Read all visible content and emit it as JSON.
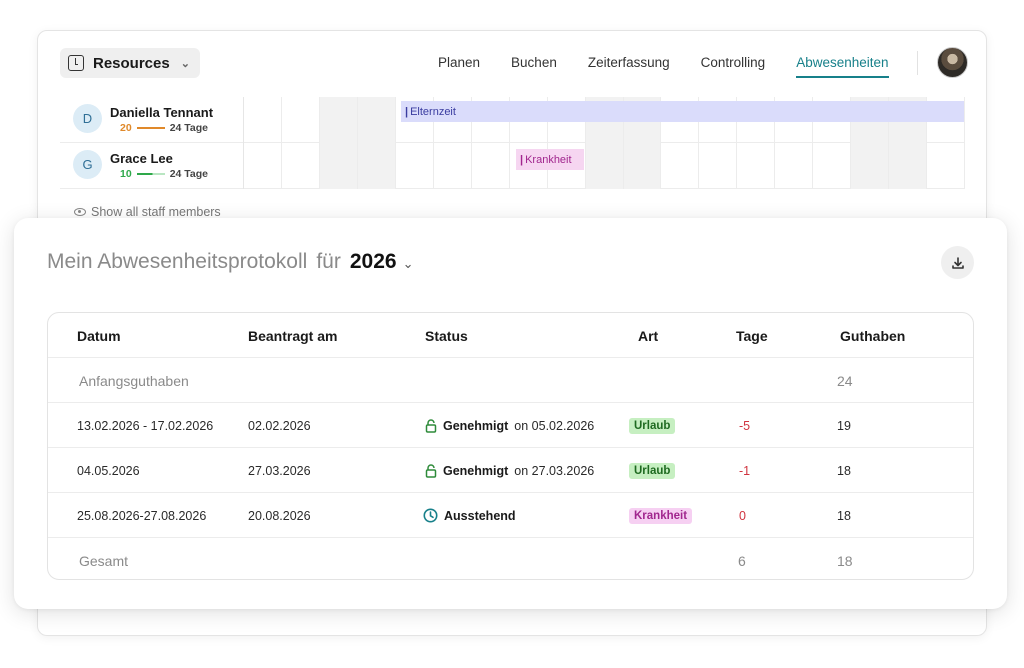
{
  "colors": {
    "accent": "#17808a",
    "negative": "#d0343f",
    "urlaub_bg": "#c6efc1",
    "krankheit_bg": "#f6d0f2",
    "elternzeit_bg": "#dadcfb",
    "approved_green": "#2e8b3a",
    "pending_teal": "#17808a"
  },
  "header": {
    "resources_label": "Resources",
    "nav": [
      "Planen",
      "Buchen",
      "Zeiterfassung",
      "Controlling",
      "Abwesenheiten"
    ],
    "active_tab": "Abwesenheiten"
  },
  "schedule": {
    "people": [
      {
        "initial": "D",
        "name": "Daniella Tennant",
        "used": "20",
        "total": "24 Tage",
        "bar_color": "#e0892a",
        "absence": "Elternzeit"
      },
      {
        "initial": "G",
        "name": "Grace Lee",
        "used": "10",
        "total": "24 Tage",
        "bar_color": "#2ea84a",
        "absence": "Krankheit"
      }
    ],
    "show_all": "Show all staff members"
  },
  "protocol": {
    "title": "Mein Abwesenheitsprotokoll",
    "for": "für",
    "year": "2026",
    "columns": [
      "Datum",
      "Beantragt am",
      "Status",
      "Art",
      "Tage",
      "Guthaben"
    ],
    "start_label": "Anfangsguthaben",
    "start_balance": "24",
    "rows": [
      {
        "datum": "13.02.2026 - 17.02.2026",
        "beantragt": "02.02.2026",
        "status": "Genehmigt",
        "status_on": "on 05.02.2026",
        "status_icon": "lock-icon",
        "art": "Urlaub",
        "tage": "-5",
        "guthaben": "19"
      },
      {
        "datum": "04.05.2026",
        "beantragt": "27.03.2026",
        "status": "Genehmigt",
        "status_on": "on 27.03.2026",
        "status_icon": "lock-icon",
        "art": "Urlaub",
        "tage": "-1",
        "guthaben": "18"
      },
      {
        "datum": "25.08.2026-27.08.2026",
        "beantragt": "20.08.2026",
        "status": "Ausstehend",
        "status_on": "",
        "status_icon": "clock-icon",
        "art": "Krankheit",
        "tage": "0",
        "guthaben": "18"
      }
    ],
    "total_label": "Gesamt",
    "total_days": "6",
    "total_balance": "18"
  }
}
